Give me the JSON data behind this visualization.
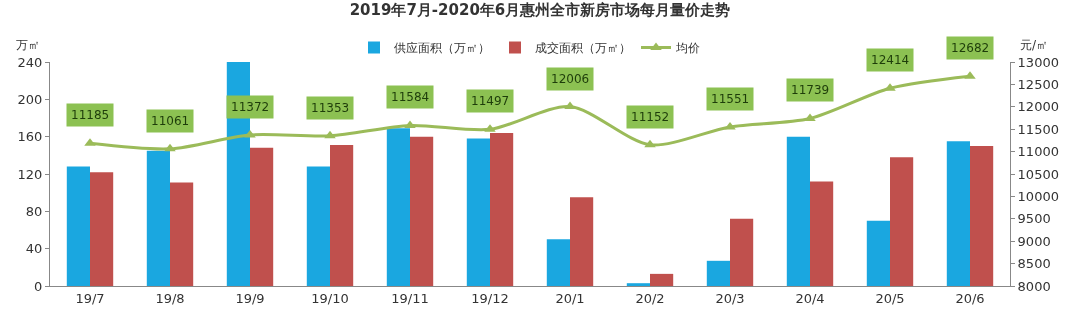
{
  "chart_data": {
    "type": "bar",
    "title": "2019年7月-2020年6月惠州全市新房市场每月量价走势",
    "ylabel": "万㎡",
    "y2label": "元/㎡",
    "categories": [
      "19/7",
      "19/8",
      "19/9",
      "19/10",
      "19/11",
      "19/12",
      "20/1",
      "20/2",
      "20/3",
      "20/4",
      "20/5",
      "20/6"
    ],
    "series": [
      {
        "name": "供应面积（万㎡）",
        "color": "#1aa7e0",
        "values": [
          128,
          145,
          240,
          128,
          169,
          158,
          50,
          3,
          27,
          160,
          70,
          155
        ]
      },
      {
        "name": "成交面积（万㎡）",
        "color": "#c0504d",
        "values": [
          122,
          111,
          148,
          151,
          160,
          164,
          95,
          13,
          72,
          112,
          138,
          150
        ]
      },
      {
        "name": "均价",
        "type": "line",
        "axis": "y2",
        "color": "#9bbb59",
        "marker": "triangle",
        "line_style": "solid",
        "values": [
          11185,
          11061,
          11372,
          11353,
          11584,
          11497,
          12006,
          11152,
          11551,
          11739,
          12414,
          12682
        ],
        "value_labels": [
          "11185",
          "11061",
          "11372",
          "11353",
          "11584",
          "11497",
          "12006",
          "11152",
          "11551",
          "11739",
          "12414",
          "12682"
        ]
      }
    ],
    "ylim": [
      0,
      240
    ],
    "yticks": [
      0,
      40,
      80,
      120,
      160,
      200,
      240
    ],
    "y2lim": [
      8000,
      13000
    ],
    "y2ticks": [
      8000,
      8500,
      9000,
      9500,
      10000,
      10500,
      11000,
      11500,
      12000,
      12500,
      13000
    ],
    "grid": false,
    "legend": "top"
  }
}
